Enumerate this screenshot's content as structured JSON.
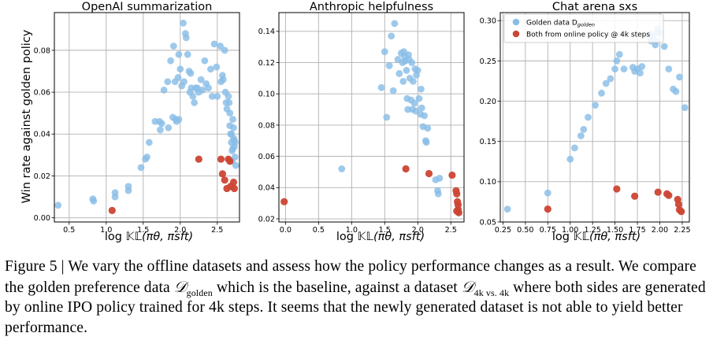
{
  "figure": {
    "ylabel": "Win rate against golden policy",
    "xlabel_prefix": "log ",
    "xlabel_kl": "𝕂𝕃",
    "xlabel_args": "(πθ, πsft)",
    "colors": {
      "golden": "#89bde6",
      "online": "#cc4433",
      "grid": "#b0b0b0"
    },
    "legend": {
      "golden_label": "Golden data D",
      "golden_sub": "golden",
      "online_label": "Both from online policy @ 4k steps"
    }
  },
  "chart_data": [
    {
      "type": "scatter",
      "title": "OpenAI summarization",
      "xlim": [
        0.3,
        2.8
      ],
      "ylim": [
        -0.002,
        0.098
      ],
      "xticks": [
        0.5,
        1.0,
        1.5,
        2.0,
        2.5
      ],
      "xtick_labels": [
        "0.5",
        "1.0",
        "1.5",
        "2.0",
        "2.5"
      ],
      "yticks": [
        0.0,
        0.02,
        0.04,
        0.06,
        0.08
      ],
      "ytick_labels": [
        "0.00",
        "0.02",
        "0.04",
        "0.06",
        "0.08"
      ],
      "series": [
        {
          "name": "Golden data",
          "points": [
            [
              0.35,
              0.006
            ],
            [
              0.82,
              0.009
            ],
            [
              0.83,
              0.008
            ],
            [
              1.12,
              0.012
            ],
            [
              1.12,
              0.01
            ],
            [
              1.3,
              0.015
            ],
            [
              1.3,
              0.013
            ],
            [
              1.47,
              0.024
            ],
            [
              1.53,
              0.028
            ],
            [
              1.55,
              0.029
            ],
            [
              1.58,
              0.036
            ],
            [
              1.66,
              0.046
            ],
            [
              1.72,
              0.046
            ],
            [
              1.73,
              0.042
            ],
            [
              1.75,
              0.045
            ],
            [
              1.78,
              0.061
            ],
            [
              1.83,
              0.065
            ],
            [
              1.84,
              0.043
            ],
            [
              1.87,
              0.075
            ],
            [
              1.9,
              0.048
            ],
            [
              1.91,
              0.082
            ],
            [
              1.93,
              0.065
            ],
            [
              1.94,
              0.047
            ],
            [
              1.95,
              0.046
            ],
            [
              1.97,
              0.067
            ],
            [
              1.98,
              0.078
            ],
            [
              1.98,
              0.047
            ],
            [
              2.0,
              0.071
            ],
            [
              2.02,
              0.063
            ],
            [
              2.04,
              0.093
            ],
            [
              2.05,
              0.065
            ],
            [
              2.07,
              0.088
            ],
            [
              2.08,
              0.086
            ],
            [
              2.1,
              0.078
            ],
            [
              2.12,
              0.07
            ],
            [
              2.13,
              0.06
            ],
            [
              2.14,
              0.069
            ],
            [
              2.15,
              0.062
            ],
            [
              2.17,
              0.058
            ],
            [
              2.19,
              0.055
            ],
            [
              2.21,
              0.062
            ],
            [
              2.23,
              0.062
            ],
            [
              2.25,
              0.06
            ],
            [
              2.28,
              0.066
            ],
            [
              2.3,
              0.061
            ],
            [
              2.33,
              0.075
            ],
            [
              2.35,
              0.064
            ],
            [
              2.38,
              0.062
            ],
            [
              2.41,
              0.071
            ],
            [
              2.43,
              0.058
            ],
            [
              2.46,
              0.083
            ],
            [
              2.49,
              0.072
            ],
            [
              2.5,
              0.058
            ],
            [
              2.54,
              0.082
            ],
            [
              2.55,
              0.065
            ],
            [
              2.57,
              0.068
            ],
            [
              2.58,
              0.066
            ],
            [
              2.6,
              0.08
            ],
            [
              2.61,
              0.06
            ],
            [
              2.62,
              0.055
            ],
            [
              2.63,
              0.052
            ],
            [
              2.65,
              0.058
            ],
            [
              2.66,
              0.055
            ],
            [
              2.67,
              0.05
            ],
            [
              2.67,
              0.044
            ],
            [
              2.68,
              0.04
            ],
            [
              2.69,
              0.036
            ],
            [
              2.7,
              0.032
            ],
            [
              2.7,
              0.027
            ],
            [
              2.71,
              0.047
            ],
            [
              2.72,
              0.043
            ],
            [
              2.72,
              0.038
            ],
            [
              2.73,
              0.037
            ],
            [
              2.73,
              0.034
            ],
            [
              2.74,
              0.036
            ],
            [
              2.74,
              0.029
            ],
            [
              2.75,
              0.025
            ],
            [
              2.71,
              0.033
            ],
            [
              2.69,
              0.04
            ]
          ]
        },
        {
          "name": "Both from online policy @ 4k steps",
          "points": [
            [
              1.08,
              0.0035
            ],
            [
              2.25,
              0.028
            ],
            [
              2.55,
              0.028
            ],
            [
              2.57,
              0.021
            ],
            [
              2.6,
              0.018
            ],
            [
              2.63,
              0.014
            ],
            [
              2.65,
              0.028
            ],
            [
              2.67,
              0.027
            ],
            [
              2.68,
              0.015
            ],
            [
              2.72,
              0.017
            ],
            [
              2.73,
              0.014
            ]
          ]
        }
      ]
    },
    {
      "type": "scatter",
      "title": "Anthropic helpfulness",
      "xlim": [
        -0.1,
        2.7
      ],
      "ylim": [
        0.018,
        0.152
      ],
      "xticks": [
        0.0,
        0.5,
        1.0,
        1.5,
        2.0,
        2.5
      ],
      "xtick_labels": [
        "0.0",
        "0.5",
        "1.0",
        "1.5",
        "2.0",
        "2.5"
      ],
      "yticks": [
        0.02,
        0.04,
        0.06,
        0.08,
        0.1,
        0.12,
        0.14
      ],
      "ytick_labels": [
        "0.02",
        "0.04",
        "0.06",
        "0.08",
        "0.10",
        "0.12",
        "0.14"
      ],
      "series": [
        {
          "name": "Golden data",
          "points": [
            [
              0.85,
              0.052
            ],
            [
              1.45,
              0.104
            ],
            [
              1.5,
              0.127
            ],
            [
              1.53,
              0.085
            ],
            [
              1.57,
              0.118
            ],
            [
              1.6,
              0.137
            ],
            [
              1.63,
              0.102
            ],
            [
              1.65,
              0.145
            ],
            [
              1.7,
              0.122
            ],
            [
              1.72,
              0.113
            ],
            [
              1.75,
              0.126
            ],
            [
              1.77,
              0.12
            ],
            [
              1.78,
              0.108
            ],
            [
              1.79,
              0.127
            ],
            [
              1.8,
              0.124
            ],
            [
              1.81,
              0.121
            ],
            [
              1.83,
              0.115
            ],
            [
              1.84,
              0.097
            ],
            [
              1.85,
              0.09
            ],
            [
              1.86,
              0.125
            ],
            [
              1.87,
              0.122
            ],
            [
              1.88,
              0.11
            ],
            [
              1.9,
              0.096
            ],
            [
              1.91,
              0.12
            ],
            [
              1.92,
              0.09
            ],
            [
              1.93,
              0.108
            ],
            [
              1.95,
              0.094
            ],
            [
              1.96,
              0.116
            ],
            [
              1.97,
              0.089
            ],
            [
              1.98,
              0.112
            ],
            [
              2.0,
              0.115
            ],
            [
              2.02,
              0.097
            ],
            [
              2.04,
              0.087
            ],
            [
              2.05,
              0.103
            ],
            [
              2.06,
              0.091
            ],
            [
              2.08,
              0.079
            ],
            [
              2.1,
              0.086
            ],
            [
              2.12,
              0.07
            ],
            [
              2.13,
              0.069
            ],
            [
              2.15,
              0.078
            ],
            [
              2.27,
              0.045
            ],
            [
              2.3,
              0.038
            ],
            [
              2.31,
              0.036
            ],
            [
              2.33,
              0.046
            ]
          ]
        },
        {
          "name": "Both from online policy @ 4k steps",
          "points": [
            [
              -0.02,
              0.031
            ],
            [
              1.82,
              0.052
            ],
            [
              2.17,
              0.049
            ],
            [
              2.52,
              0.048
            ],
            [
              2.58,
              0.038
            ],
            [
              2.59,
              0.036
            ],
            [
              2.6,
              0.031
            ],
            [
              2.61,
              0.029
            ],
            [
              2.61,
              0.026
            ],
            [
              2.62,
              0.024
            ],
            [
              2.59,
              0.025
            ]
          ]
        }
      ]
    },
    {
      "type": "scatter",
      "title": "Chat arena sxs",
      "xlim": [
        0.22,
        2.33
      ],
      "ylim": [
        0.05,
        0.31
      ],
      "xticks": [
        0.25,
        0.5,
        0.75,
        1.0,
        1.25,
        1.5,
        1.75,
        2.0,
        2.25
      ],
      "xtick_labels": [
        "0.25",
        "0.50",
        "0.75",
        "1.00",
        "1.25",
        "1.50",
        "1.75",
        "2.00",
        "2.25"
      ],
      "yticks": [
        0.05,
        0.1,
        0.15,
        0.2,
        0.25,
        0.3
      ],
      "ytick_labels": [
        "0.05",
        "0.10",
        "0.15",
        "0.20",
        "0.25",
        "0.30"
      ],
      "legend_position": "top-left",
      "series": [
        {
          "name": "Golden data D golden",
          "points": [
            [
              0.3,
              0.066
            ],
            [
              0.75,
              0.086
            ],
            [
              1.0,
              0.128
            ],
            [
              1.05,
              0.142
            ],
            [
              1.12,
              0.157
            ],
            [
              1.15,
              0.165
            ],
            [
              1.2,
              0.18
            ],
            [
              1.28,
              0.195
            ],
            [
              1.35,
              0.21
            ],
            [
              1.4,
              0.222
            ],
            [
              1.45,
              0.228
            ],
            [
              1.5,
              0.24
            ],
            [
              1.52,
              0.25
            ],
            [
              1.55,
              0.258
            ],
            [
              1.6,
              0.24
            ],
            [
              1.7,
              0.242
            ],
            [
              1.72,
              0.237
            ],
            [
              1.75,
              0.24
            ],
            [
              1.78,
              0.235
            ],
            [
              1.8,
              0.243
            ],
            [
              1.9,
              0.275
            ],
            [
              1.92,
              0.28
            ],
            [
              1.95,
              0.27
            ],
            [
              1.97,
              0.285
            ],
            [
              1.98,
              0.29
            ],
            [
              2.0,
              0.285
            ],
            [
              2.05,
              0.268
            ],
            [
              2.1,
              0.24
            ],
            [
              2.15,
              0.215
            ],
            [
              2.18,
              0.212
            ],
            [
              2.22,
              0.23
            ],
            [
              2.28,
              0.192
            ],
            [
              1.9,
              0.283
            ],
            [
              1.96,
              0.275
            ]
          ]
        },
        {
          "name": "Both from online policy @ 4k steps",
          "points": [
            [
              0.75,
              0.066
            ],
            [
              1.52,
              0.091
            ],
            [
              1.72,
              0.082
            ],
            [
              1.98,
              0.087
            ],
            [
              2.08,
              0.085
            ],
            [
              2.1,
              0.083
            ],
            [
              2.2,
              0.078
            ],
            [
              2.21,
              0.072
            ],
            [
              2.22,
              0.065
            ],
            [
              2.24,
              0.063
            ]
          ]
        }
      ]
    }
  ],
  "caption": {
    "fig_label": "Figure 5",
    "sep": " | ",
    "part1": "We vary the offline datasets and assess how the policy performance changes as a result. We compare the golden preference data ",
    "sym1": "𝒟",
    "sub1": "golden",
    "part2": " which is the baseline, against a dataset ",
    "sym2": "𝒟",
    "sub2": "4k vs. 4k",
    "part3": " where both sides are generated by online IPO policy trained for 4k steps. It seems that the newly generated dataset is not able to yield better performance."
  }
}
